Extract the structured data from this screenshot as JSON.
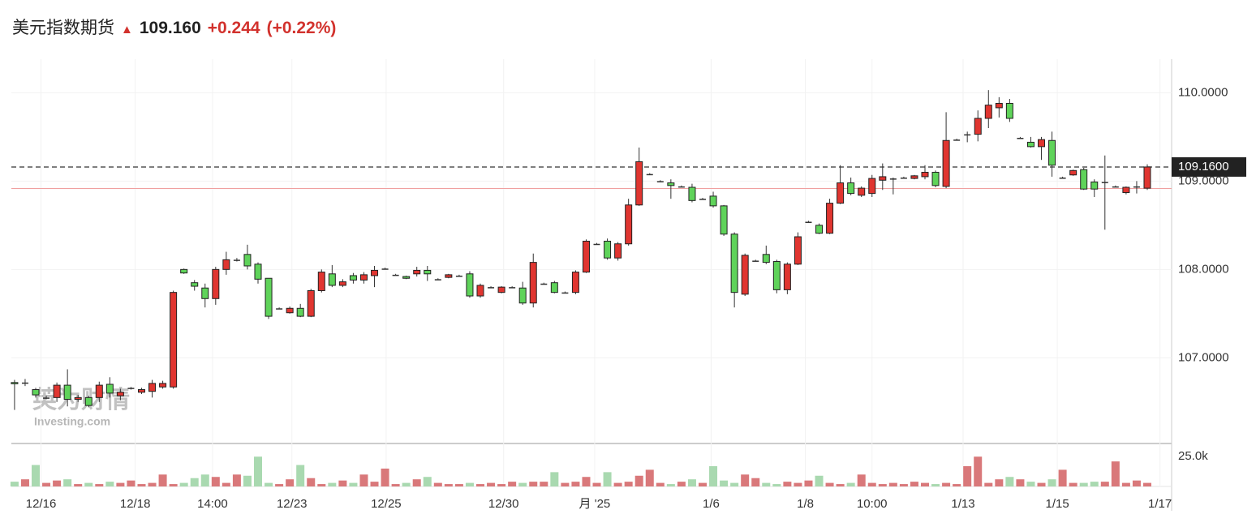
{
  "chart_data": {
    "type": "candlestick",
    "title": "美元指数期货",
    "price": "109.160",
    "change": "+0.244",
    "change_pct": "(+0.22%)",
    "up_color": "#e03530",
    "down_color": "#5fd35a",
    "vol_up_color": "#d9787a",
    "vol_down_color": "#a9d9b0",
    "last_price": {
      "value": 109.16,
      "label": "109.1600"
    },
    "reference_price": 108.916,
    "watermark": "英为财情",
    "watermark_sub": "Investing.com",
    "ylim": [
      106.03,
      110.38
    ],
    "yticks": [
      {
        "value": 107,
        "label": "107.0000"
      },
      {
        "value": 108,
        "label": "108.0000"
      },
      {
        "value": 109,
        "label": "109.0000"
      },
      {
        "value": 110,
        "label": "110.0000"
      }
    ],
    "vlim": [
      0,
      34000
    ],
    "vticks": [
      {
        "value": 25000,
        "label": "25.0k"
      }
    ],
    "xlim": [
      -0.3,
      109.3
    ],
    "xticks": [
      {
        "value": 2.5,
        "label": "12/16"
      },
      {
        "value": 11.4,
        "label": "12/18"
      },
      {
        "value": 18.7,
        "label": "14:00"
      },
      {
        "value": 26.2,
        "label": "12/23"
      },
      {
        "value": 35.1,
        "label": "12/25"
      },
      {
        "value": 46.2,
        "label": "12/30"
      },
      {
        "value": 54.8,
        "label": "月 '25"
      },
      {
        "value": 65.8,
        "label": "1/6"
      },
      {
        "value": 74.7,
        "label": "1/8"
      },
      {
        "value": 81,
        "label": "10:00"
      },
      {
        "value": 89.6,
        "label": "1/13"
      },
      {
        "value": 98.5,
        "label": "1/15"
      },
      {
        "value": 108.2,
        "label": "1/17"
      }
    ],
    "open": [
      106.72,
      106.72,
      106.64,
      106.55,
      106.55,
      106.69,
      106.53,
      106.55,
      106.55,
      106.7,
      106.57,
      106.66,
      106.61,
      106.62,
      106.67,
      106.67,
      108.0,
      107.85,
      107.79,
      107.67,
      108.0,
      108.11,
      108.17,
      108.06,
      107.9,
      107.56,
      107.51,
      107.56,
      107.47,
      107.76,
      107.95,
      107.82,
      107.93,
      107.88,
      107.93,
      108.01,
      107.94,
      107.92,
      107.95,
      107.99,
      107.89,
      107.91,
      107.93,
      107.95,
      107.7,
      107.8,
      107.74,
      107.8,
      107.79,
      107.62,
      107.84,
      107.85,
      107.74,
      107.74,
      107.97,
      108.29,
      108.32,
      108.13,
      108.29,
      108.73,
      109.08,
      109.0,
      108.98,
      108.94,
      108.93,
      108.8,
      108.83,
      108.72,
      108.4,
      107.72,
      108.1,
      108.17,
      108.09,
      107.77,
      108.06,
      108.54,
      108.5,
      108.41,
      108.75,
      108.98,
      108.84,
      108.86,
      109.01,
      109.03,
      109.04,
      109.03,
      109.05,
      109.1,
      108.94,
      109.47,
      109.53,
      109.53,
      109.71,
      109.83,
      109.88,
      109.49,
      109.44,
      109.39,
      109.46,
      109.04,
      109.07,
      109.13,
      108.99,
      108.99,
      108.94,
      108.87,
      108.94,
      108.92
    ],
    "close": [
      106.71,
      106.72,
      106.58,
      106.55,
      106.69,
      106.53,
      106.55,
      106.46,
      106.69,
      106.6,
      106.61,
      106.66,
      106.64,
      106.71,
      106.71,
      107.74,
      107.96,
      107.81,
      107.67,
      108.0,
      108.11,
      108.11,
      108.04,
      107.89,
      107.47,
      107.56,
      107.56,
      107.47,
      107.76,
      107.97,
      107.82,
      107.86,
      107.88,
      107.94,
      107.99,
      108.01,
      107.94,
      107.9,
      107.99,
      107.95,
      107.89,
      107.94,
      107.93,
      107.7,
      107.82,
      107.8,
      107.8,
      107.8,
      107.62,
      108.08,
      107.84,
      107.74,
      107.74,
      107.97,
      108.32,
      108.29,
      108.13,
      108.29,
      108.73,
      109.22,
      109.08,
      109.0,
      108.95,
      108.94,
      108.78,
      108.8,
      108.72,
      108.4,
      107.74,
      108.16,
      108.1,
      108.08,
      107.77,
      108.06,
      108.37,
      108.54,
      108.41,
      108.75,
      108.98,
      108.86,
      108.92,
      109.03,
      109.05,
      109.03,
      109.04,
      109.06,
      109.1,
      108.95,
      109.46,
      109.47,
      109.53,
      109.71,
      109.86,
      109.88,
      109.71,
      109.49,
      109.39,
      109.47,
      109.18,
      109.04,
      109.12,
      108.91,
      108.91,
      108.99,
      108.94,
      108.93,
      108.94,
      109.16
    ],
    "high": [
      106.75,
      106.76,
      106.66,
      106.57,
      106.72,
      106.87,
      106.58,
      106.57,
      106.73,
      106.78,
      106.65,
      106.67,
      106.66,
      106.75,
      106.74,
      107.76,
      108.01,
      107.88,
      107.84,
      108.03,
      108.2,
      108.13,
      108.28,
      108.08,
      107.9,
      107.57,
      107.58,
      107.61,
      107.78,
      108.0,
      108.05,
      107.89,
      107.96,
      107.97,
      108.04,
      108.02,
      107.95,
      107.93,
      108.03,
      108.04,
      107.9,
      107.95,
      107.94,
      107.98,
      107.84,
      107.81,
      107.81,
      107.81,
      107.86,
      108.18,
      107.85,
      107.87,
      107.75,
      107.99,
      108.34,
      108.3,
      108.35,
      108.31,
      108.8,
      109.38,
      109.09,
      109.01,
      109.02,
      108.95,
      108.97,
      108.81,
      108.88,
      108.73,
      108.42,
      108.18,
      108.11,
      108.27,
      108.11,
      108.08,
      108.42,
      108.55,
      108.52,
      108.8,
      109.18,
      109.04,
      108.94,
      109.07,
      109.2,
      109.04,
      109.05,
      109.07,
      109.18,
      109.12,
      109.78,
      109.48,
      109.56,
      109.8,
      110.03,
      109.95,
      109.93,
      109.5,
      109.5,
      109.5,
      109.56,
      109.05,
      109.13,
      109.15,
      109.02,
      109.29,
      108.95,
      108.94,
      109.0,
      109.19
    ],
    "low": [
      106.41,
      106.68,
      106.55,
      106.53,
      106.5,
      106.45,
      106.5,
      106.44,
      106.5,
      106.55,
      106.52,
      106.64,
      106.59,
      106.55,
      106.65,
      106.65,
      107.95,
      107.76,
      107.57,
      107.6,
      107.94,
      108.09,
      108.0,
      107.84,
      107.44,
      107.55,
      107.5,
      107.46,
      107.46,
      107.74,
      107.8,
      107.8,
      107.84,
      107.84,
      107.8,
      108.0,
      107.93,
      107.89,
      107.92,
      107.87,
      107.88,
      107.9,
      107.92,
      107.68,
      107.68,
      107.79,
      107.73,
      107.79,
      107.6,
      107.57,
      107.83,
      107.73,
      107.73,
      107.72,
      107.96,
      108.28,
      108.11,
      108.1,
      108.27,
      108.72,
      109.07,
      108.99,
      108.8,
      108.93,
      108.76,
      108.79,
      108.7,
      108.38,
      107.57,
      107.7,
      108.09,
      108.06,
      107.73,
      107.72,
      108.05,
      108.53,
      108.4,
      108.4,
      108.74,
      108.84,
      108.82,
      108.82,
      108.9,
      108.85,
      109.03,
      109.02,
      109.02,
      108.93,
      108.92,
      109.46,
      109.44,
      109.45,
      109.6,
      109.72,
      109.67,
      109.48,
      109.38,
      109.24,
      109.05,
      109.03,
      109.06,
      108.9,
      108.82,
      108.45,
      108.93,
      108.85,
      108.86,
      108.9
    ],
    "volume": [
      4000,
      6000,
      18000,
      3000,
      5000,
      6000,
      2000,
      3000,
      2000,
      4000,
      3000,
      5000,
      2000,
      3000,
      10000,
      2000,
      3000,
      7000,
      10000,
      8000,
      3000,
      10000,
      9000,
      25000,
      3000,
      2000,
      6000,
      18000,
      7000,
      2000,
      3000,
      5000,
      3000,
      10000,
      4000,
      15000,
      2000,
      3000,
      6000,
      8000,
      3000,
      2000,
      2000,
      3000,
      2000,
      3000,
      2000,
      4000,
      3000,
      4000,
      4000,
      12000,
      3000,
      4000,
      8000,
      3000,
      12000,
      3000,
      4000,
      9000,
      14000,
      3000,
      2000,
      4000,
      6000,
      3000,
      17000,
      5000,
      3000,
      10000,
      7000,
      3000,
      2000,
      4000,
      3000,
      5000,
      9000,
      3000,
      2000,
      3000,
      10000,
      3000,
      2000,
      3000,
      2000,
      4000,
      3000,
      2000,
      3000,
      2000,
      17000,
      25000,
      3000,
      6000,
      8000,
      6000,
      4000,
      3000,
      6000,
      14000,
      3000,
      3000,
      4000,
      4000,
      21000,
      3000,
      5000,
      3000
    ],
    "grid": true
  }
}
